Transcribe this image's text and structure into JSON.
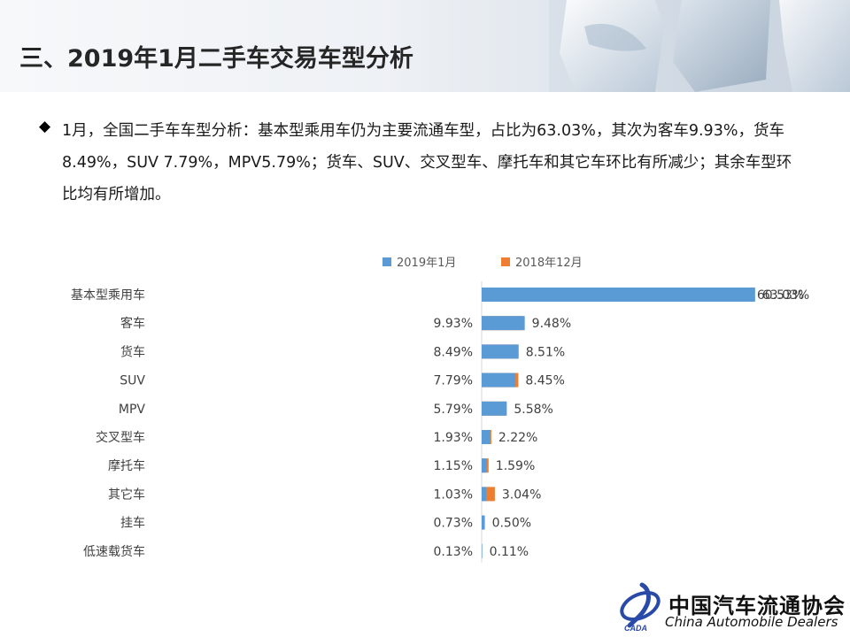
{
  "slide": {
    "title": "三、2019年1月二手车交易车型分析",
    "bullet_text": "1月，全国二手车车型分析：基本型乘用车仍为主要流通车型，占比为63.03%，其次为客车9.93%，货车8.49%，SUV 7.79%，MPV5.79%；货车、SUV、交叉型车、摩托车和其它车环比有所减少；其余车型环比均有所增加。"
  },
  "colors": {
    "series_current": "#5b9bd5",
    "series_previous": "#ed7d31"
  },
  "icons": {
    "bullet": "diamond-icon",
    "logo": "cada-logo-icon"
  },
  "logo": {
    "cn": "中国汽车流通协会",
    "en": "China Automobile Dealers",
    "mark_text": "CADA"
  },
  "chart_data": {
    "type": "bar",
    "orientation": "horizontal",
    "legend_position": "top",
    "grid": false,
    "categories": [
      "基本型乘用车",
      "客车",
      "货车",
      "SUV",
      "MPV",
      "交叉型车",
      "摩托车",
      "其它车",
      "挂车",
      "低速载货车"
    ],
    "series": [
      {
        "name": "2019年1月",
        "values": [
          63.03,
          9.93,
          8.49,
          7.79,
          5.79,
          1.93,
          1.15,
          1.03,
          0.73,
          0.13
        ],
        "labels": [
          "63.03%",
          "9.93%",
          "8.49%",
          "7.79%",
          "5.79%",
          "1.93%",
          "1.15%",
          "1.03%",
          "0.73%",
          "0.13%"
        ]
      },
      {
        "name": "2018年12月",
        "values": [
          60.53,
          9.48,
          8.51,
          8.45,
          5.58,
          2.22,
          1.59,
          3.04,
          0.5,
          0.11
        ],
        "labels": [
          "60.53%",
          "9.48%",
          "8.51%",
          "8.45%",
          "5.58%",
          "2.22%",
          "1.59%",
          "3.04%",
          "0.50%",
          "0.11%"
        ]
      }
    ]
  }
}
